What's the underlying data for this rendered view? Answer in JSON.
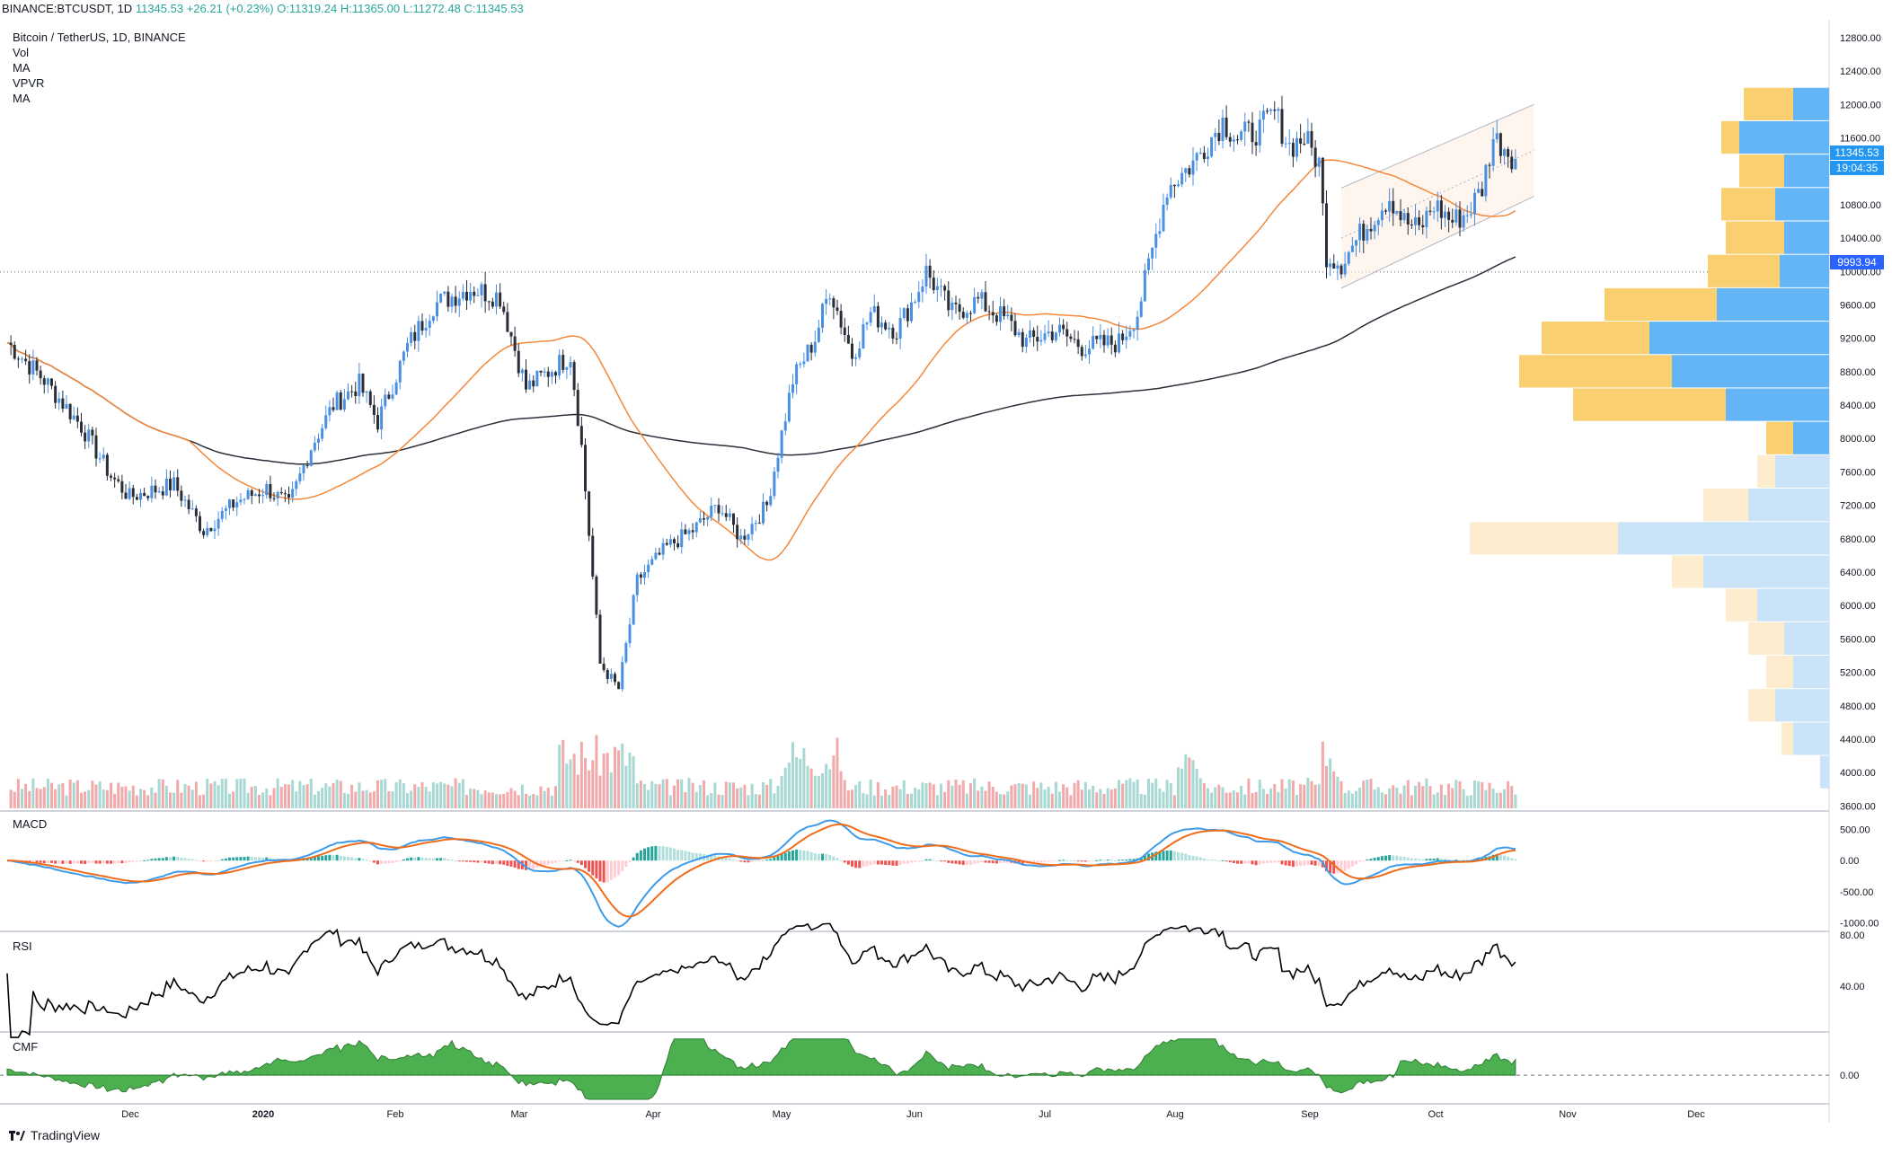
{
  "header": {
    "symbol": "BINANCE:BTCUSDT, 1D",
    "last": "11345.53",
    "change": "+26.21 (+0.23%)",
    "ohlc": {
      "o": "O:11319.24",
      "h": "H:11365.00",
      "l": "L:11272.48",
      "c": "C:11345.53"
    }
  },
  "legend": [
    "Bitcoin / TetherUS, 1D, BINANCE",
    "Vol",
    "MA",
    "VPVR",
    "MA"
  ],
  "panes": {
    "macd": "MACD",
    "rsi": "RSI",
    "cmf": "CMF"
  },
  "footer": {
    "brand": "TradingView"
  },
  "colors": {
    "up": "#4a90e2",
    "down": "#2a2e39",
    "ma_fast": "#f5883a",
    "ma_slow": "#2a2e39",
    "macd": "#3d9be9",
    "signal": "#f06c1a",
    "cmf": "#4caf50"
  },
  "price_tags": {
    "last": "11345.53",
    "countdown": "19:04:35",
    "level": "9993.94"
  },
  "chart_data": {
    "type": "candlestick",
    "title": "Bitcoin / TetherUS, 1D, BINANCE",
    "price_axis": {
      "ticks": [
        "12800.00",
        "12400.00",
        "12000.00",
        "11600.00",
        "11200.00",
        "10800.00",
        "10400.00",
        "10000.00",
        "9600.00",
        "9200.00",
        "8800.00",
        "8400.00",
        "8000.00",
        "7600.00",
        "7200.00",
        "6800.00",
        "6400.00",
        "6000.00",
        "5600.00",
        "5200.00",
        "4800.00",
        "4400.00",
        "4000.00",
        "3600.00"
      ],
      "range": [
        3550,
        12950
      ]
    },
    "time_axis": {
      "labels": [
        "Dec",
        "2020",
        "Feb",
        "Mar",
        "Apr",
        "May",
        "Jun",
        "Jul",
        "Aug",
        "Sep",
        "Oct",
        "Nov",
        "Dec"
      ]
    },
    "price_anchors": [
      [
        0,
        9150
      ],
      [
        10,
        8700
      ],
      [
        20,
        8150
      ],
      [
        28,
        7550
      ],
      [
        33,
        7300
      ],
      [
        45,
        7450
      ],
      [
        53,
        6900
      ],
      [
        62,
        7250
      ],
      [
        70,
        7400
      ],
      [
        76,
        7200
      ],
      [
        82,
        7900
      ],
      [
        88,
        8400
      ],
      [
        95,
        8650
      ],
      [
        100,
        8200
      ],
      [
        108,
        9100
      ],
      [
        115,
        9600
      ],
      [
        125,
        9800
      ],
      [
        133,
        9700
      ],
      [
        140,
        8600
      ],
      [
        146,
        8800
      ],
      [
        152,
        9000
      ],
      [
        155,
        7900
      ],
      [
        160,
        5300
      ],
      [
        165,
        5000
      ],
      [
        170,
        6300
      ],
      [
        178,
        6700
      ],
      [
        185,
        6900
      ],
      [
        192,
        7200
      ],
      [
        198,
        6800
      ],
      [
        205,
        7200
      ],
      [
        212,
        8700
      ],
      [
        218,
        9200
      ],
      [
        222,
        9800
      ],
      [
        228,
        9000
      ],
      [
        233,
        9500
      ],
      [
        240,
        9300
      ],
      [
        245,
        9700
      ],
      [
        248,
        10000
      ],
      [
        255,
        9500
      ],
      [
        262,
        9650
      ],
      [
        270,
        9400
      ],
      [
        275,
        9150
      ],
      [
        283,
        9300
      ],
      [
        290,
        9100
      ],
      [
        300,
        9150
      ],
      [
        305,
        9500
      ],
      [
        313,
        11000
      ],
      [
        320,
        11300
      ],
      [
        328,
        11800
      ],
      [
        332,
        11600
      ],
      [
        338,
        11700
      ],
      [
        342,
        11900
      ],
      [
        346,
        11500
      ],
      [
        350,
        11600
      ],
      [
        354,
        11300
      ],
      [
        356,
        10200
      ],
      [
        360,
        10100
      ],
      [
        366,
        10500
      ],
      [
        373,
        10900
      ],
      [
        377,
        10600
      ],
      [
        381,
        10500
      ],
      [
        385,
        10800
      ],
      [
        390,
        10600
      ],
      [
        394,
        10700
      ],
      [
        398,
        11000
      ],
      [
        401,
        11600
      ],
      [
        404,
        11500
      ],
      [
        407,
        11345
      ]
    ],
    "volume_profile": [
      {
        "price": 12000,
        "up": 95,
        "down": 40
      },
      {
        "price": 11600,
        "up": 120,
        "down": 100
      },
      {
        "price": 11200,
        "up": 100,
        "down": 50
      },
      {
        "price": 10800,
        "up": 120,
        "down": 60
      },
      {
        "price": 10400,
        "up": 115,
        "down": 50
      },
      {
        "price": 10000,
        "up": 135,
        "down": 55
      },
      {
        "price": 9600,
        "up": 250,
        "down": 125
      },
      {
        "price": 9200,
        "up": 320,
        "down": 200
      },
      {
        "price": 8800,
        "up": 345,
        "down": 175
      },
      {
        "price": 8400,
        "up": 285,
        "down": 115
      },
      {
        "price": 8000,
        "up": 70,
        "down": 40
      },
      {
        "price": 7600,
        "up": 80,
        "down": 60
      },
      {
        "price": 7200,
        "up": 140,
        "down": 90
      },
      {
        "price": 6800,
        "up": 400,
        "down": 235
      },
      {
        "price": 6400,
        "up": 175,
        "down": 140
      },
      {
        "price": 6000,
        "up": 115,
        "down": 80
      },
      {
        "price": 5600,
        "up": 90,
        "down": 50
      },
      {
        "price": 5200,
        "up": 70,
        "down": 40
      },
      {
        "price": 4800,
        "up": 90,
        "down": 60
      },
      {
        "price": 4400,
        "up": 53,
        "down": 40
      },
      {
        "price": 4000,
        "up": 10,
        "down": 10
      }
    ],
    "macd_axis": {
      "ticks": [
        "500.00",
        "0.00",
        "-500.00",
        "-1000.00"
      ],
      "range": [
        -1120,
        780
      ]
    },
    "rsi_axis": {
      "ticks": [
        "80.00",
        "40.00"
      ],
      "range": [
        5,
        82
      ]
    },
    "cmf_axis": {
      "ticks": [
        "0.00"
      ],
      "range": [
        -0.23,
        0.35
      ]
    }
  }
}
